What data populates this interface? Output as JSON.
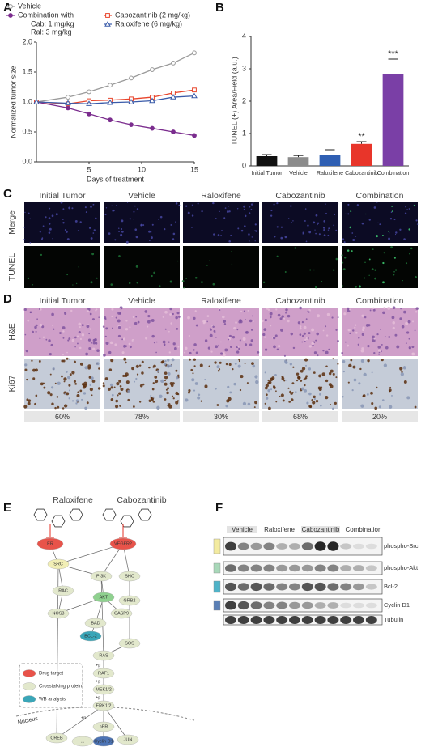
{
  "panel_labels": [
    "A",
    "B",
    "C",
    "D",
    "E",
    "F"
  ],
  "chart_data": [
    {
      "type": "line",
      "xlabel": "Days of treatment",
      "ylabel": "Normalized tumor size",
      "x": [
        0,
        3,
        5,
        7,
        9,
        11,
        13,
        15
      ],
      "xlim": [
        0,
        15
      ],
      "xticks": [
        5,
        10,
        15
      ],
      "ylim": [
        0,
        2
      ],
      "yticks": [
        {
          "value": 0,
          "label": "0.0"
        },
        {
          "value": 0.5,
          "label": "0.5"
        },
        {
          "value": 1,
          "label": "1.0"
        },
        {
          "value": 1.5,
          "label": "1.5"
        },
        {
          "value": 2,
          "label": "2.0"
        }
      ],
      "series": [
        {
          "name": "Vehicle",
          "color": "#9a9a9a",
          "marker": "circle-open",
          "values": [
            1.0,
            1.08,
            1.17,
            1.28,
            1.4,
            1.54,
            1.65,
            1.82
          ]
        },
        {
          "name": "Combination with",
          "color": "#7b2d8e",
          "marker": "circle",
          "values": [
            1.0,
            0.9,
            0.8,
            0.7,
            0.62,
            0.56,
            0.5,
            0.44
          ]
        },
        {
          "name": "Cabozantinib (2 mg/kg)",
          "color": "#e8452c",
          "marker": "square-open",
          "values": [
            1.0,
            0.97,
            1.02,
            1.03,
            1.05,
            1.08,
            1.15,
            1.2
          ]
        },
        {
          "name": "Raloxifene     (6 mg/kg)",
          "color": "#3a5ba9",
          "marker": "triangle-open",
          "values": [
            1.0,
            0.98,
            0.97,
            0.99,
            1.0,
            1.02,
            1.08,
            1.1
          ]
        }
      ],
      "legend_notes": [
        "Cab: 1 mg/kg",
        "Ral:  3 mg/kg"
      ]
    },
    {
      "type": "bar",
      "ylabel": "TUNEL (+) Area/Field (a.u.)",
      "categories": [
        "Initial Tumor",
        "Vehicle",
        "Raloxifene",
        "Cabozantinib",
        "Combination"
      ],
      "values": [
        0.3,
        0.27,
        0.35,
        0.68,
        2.85
      ],
      "errors": [
        0.05,
        0.05,
        0.15,
        0.07,
        0.45
      ],
      "colors": [
        "#111111",
        "#8c8c8c",
        "#2f5fb3",
        "#e8352a",
        "#7a3fa6"
      ],
      "ylim": [
        0,
        4
      ],
      "yticks": [
        0,
        1,
        2,
        3,
        4
      ],
      "annotations": [
        {
          "text": "**",
          "category": "Cabozantinib"
        },
        {
          "text": "***",
          "category": "Combination"
        }
      ]
    }
  ],
  "micrographs": {
    "columns": [
      "Initial Tumor",
      "Vehicle",
      "Raloxifene",
      "Cabozantinib",
      "Combination"
    ],
    "rows": [
      "Merge",
      "TUNEL"
    ]
  },
  "histology": {
    "columns": [
      "Initial Tumor",
      "Vehicle",
      "Raloxifene",
      "Cabozantinib",
      "Combination"
    ],
    "rows": [
      "H&E",
      "Ki67"
    ],
    "ki67_positive": [
      "60%",
      "78%",
      "30%",
      "68%",
      "20%"
    ]
  },
  "pathway": {
    "drugs": [
      "Raloxifene",
      "Cabozantinib"
    ],
    "nodes": [
      "ER",
      "VEGFR2",
      "SRC",
      "PI3K",
      "SHC",
      "RAC",
      "AKT",
      "NOS3",
      "CASP9",
      "BAD",
      "BCL-2",
      "GRB2",
      "SOS",
      "RAS",
      "RAF1",
      "MEK1/2",
      "ERK1/2",
      "CREB",
      "nER",
      "Cyclin D1",
      "...",
      "JUN"
    ],
    "phospho": "+p",
    "compartment": "Nucleus",
    "legend": [
      "Drug target",
      "Crosstalking protein",
      "WB analysis"
    ]
  },
  "western": {
    "groups": [
      "Vehicle",
      "Raloxifene",
      "Cabozantinib",
      "Combination"
    ],
    "rows": [
      "phospho-Src",
      "phospho-Akt",
      "Bcl-2",
      "Cyclin D1",
      "Tubulin"
    ]
  }
}
